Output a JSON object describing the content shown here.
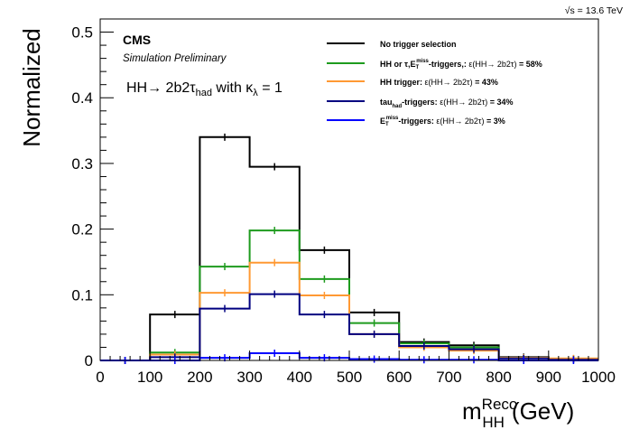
{
  "chart_data": {
    "type": "step-histogram",
    "energy_label": "√s = 13.6 TeV",
    "experiment": "CMS",
    "status": "Simulation Preliminary",
    "process": "HH→ 2b2τ_had with κ_λ = 1",
    "ylabel": "Normalized",
    "xlabel": "m_HH^Reco (GeV)",
    "xlim": [
      0,
      1000
    ],
    "ylim": [
      0,
      0.52
    ],
    "xticks": [
      "0",
      "100",
      "200",
      "300",
      "400",
      "500",
      "600",
      "700",
      "800",
      "900",
      "1000"
    ],
    "yticks": [
      "0",
      "0.1",
      "0.2",
      "0.3",
      "0.4",
      "0.5"
    ],
    "bin_edges": [
      0,
      100,
      200,
      300,
      400,
      500,
      600,
      700,
      800,
      900,
      1000
    ],
    "series": [
      {
        "name": "No trigger selection",
        "color": "#000000",
        "values": [
          0.0,
          0.07,
          0.34,
          0.295,
          0.168,
          0.073,
          0.028,
          0.023,
          0.005,
          0.002
        ]
      },
      {
        "name": "HH or τ,E_T^miss-triggers,: ε(HH→ 2b2τ) = 58%",
        "color": "#1e9b1e",
        "values": [
          0.0,
          0.012,
          0.143,
          0.198,
          0.124,
          0.057,
          0.026,
          0.02,
          0.004,
          0.002
        ]
      },
      {
        "name": "HH trigger: ε(HH→ 2b2τ) = 43%",
        "color": "#ff9933",
        "values": [
          0.0,
          0.009,
          0.103,
          0.149,
          0.099,
          0.04,
          0.02,
          0.015,
          0.004,
          0.003
        ]
      },
      {
        "name": "tau_had-triggers: ε(HH→ 2b2τ) = 34%",
        "color": "#000080",
        "values": [
          0.0,
          0.005,
          0.079,
          0.101,
          0.07,
          0.04,
          0.022,
          0.017,
          0.003,
          0.001
        ]
      },
      {
        "name": "E_T^miss-triggers: ε(HH→ 2b2τ) = 3%",
        "color": "#0000ff",
        "values": [
          0.0,
          0.0,
          0.004,
          0.011,
          0.004,
          0.002,
          0.001,
          0.001,
          0.0,
          0.0
        ]
      }
    ]
  }
}
